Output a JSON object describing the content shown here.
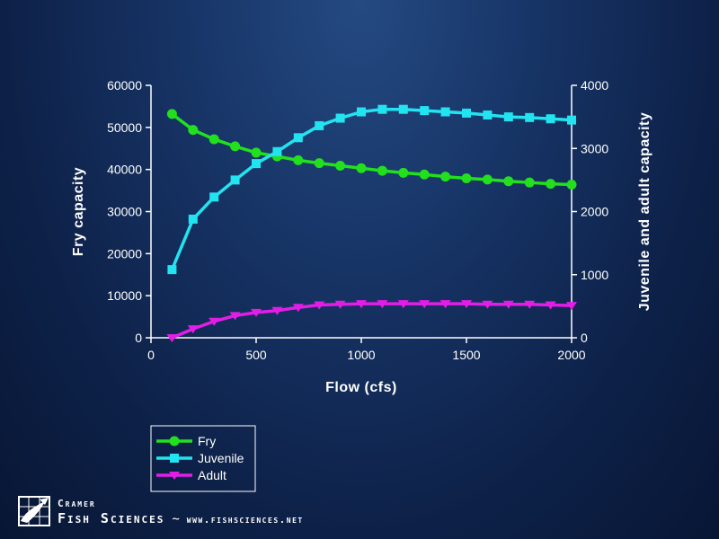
{
  "chart_data": {
    "type": "line",
    "title": "",
    "xlabel": "Flow (cfs)",
    "ylabel_left": "Fry capacity",
    "ylabel_right": "Juvenile and adult capacity",
    "xlim": [
      0,
      2000
    ],
    "xticks": [
      0,
      500,
      1000,
      1500,
      2000
    ],
    "ylim_left": [
      0,
      60000
    ],
    "yticks_left": [
      0,
      10000,
      20000,
      30000,
      40000,
      50000,
      60000
    ],
    "ylim_right": [
      0,
      4000
    ],
    "yticks_right": [
      0,
      1000,
      2000,
      3000,
      4000
    ],
    "grid": false,
    "legend_placement": "bottom-left, below plot",
    "x": [
      100,
      200,
      300,
      400,
      500,
      600,
      700,
      800,
      900,
      1000,
      1100,
      1200,
      1300,
      1400,
      1500,
      1600,
      1700,
      1800,
      1900,
      2000
    ],
    "series": [
      {
        "name": "Fry",
        "axis": "left",
        "color": "#22e01e",
        "marker": "circle",
        "values": [
          53200,
          49400,
          47200,
          45500,
          44000,
          43100,
          42200,
          41500,
          40900,
          40300,
          39700,
          39200,
          38800,
          38300,
          37900,
          37600,
          37200,
          36900,
          36600,
          36400
        ]
      },
      {
        "name": "Juvenile",
        "axis": "right",
        "color": "#22e3f0",
        "marker": "square",
        "values": [
          1080,
          1880,
          2230,
          2500,
          2760,
          2950,
          3170,
          3360,
          3480,
          3580,
          3620,
          3620,
          3600,
          3580,
          3560,
          3530,
          3500,
          3490,
          3470,
          3450
        ]
      },
      {
        "name": "Adult",
        "axis": "right",
        "color": "#e21ee6",
        "marker": "triangle-down",
        "values": [
          0,
          140,
          260,
          350,
          400,
          430,
          480,
          520,
          530,
          540,
          540,
          540,
          540,
          540,
          540,
          530,
          530,
          530,
          520,
          510
        ]
      }
    ]
  },
  "logo": {
    "line1": "Cramer",
    "company": "Fish Sciences",
    "separator": "~",
    "url": "www.fishsciences.net"
  }
}
